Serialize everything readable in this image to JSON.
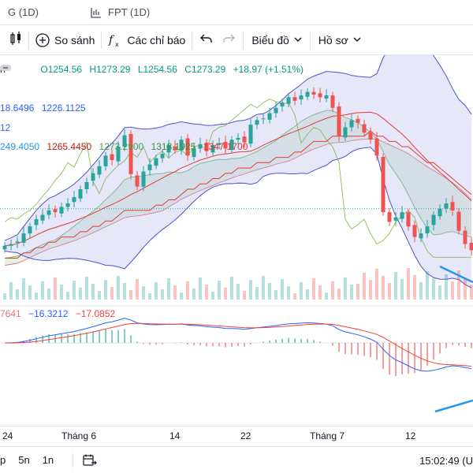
{
  "tabs": [
    {
      "label": "G (1D)"
    },
    {
      "label": "FPT (1D)"
    }
  ],
  "toolbar": {
    "compare_label": "So sánh",
    "indicators_label": "Các chỉ báo",
    "chart_type_label": "Biểu đồ",
    "profile_label": "Hồ sơ"
  },
  "ohlc": {
    "prefix": "h",
    "open": "O1254.56",
    "high": "H1273.29",
    "low": "L1254.56",
    "close": "C1273.29",
    "change": "+18.97 (+1.51%)"
  },
  "indicator_lines": {
    "line1": [
      "18.6496",
      "1226.1125"
    ],
    "line2": [
      "12"
    ],
    "line3": [
      "249.4050",
      "1265.4450",
      "1273.2900",
      "1318.1925",
      "1347.1700"
    ]
  },
  "macd": [
    "7641",
    "−16.3212",
    "−17.0852"
  ],
  "xaxis_labels": [
    "24",
    "Tháng 6",
    "14",
    "22",
    "Tháng 7",
    "12"
  ],
  "bottom": {
    "ranges": [
      "p",
      "5n",
      "1n"
    ],
    "clock": "15:02:49 (U"
  },
  "colors": {
    "up": "#26a69a",
    "down": "#ef5350",
    "bb_fill": "#b7b9ee",
    "bb_line": "#4c52d1",
    "cloud_green": "#c8e6c9",
    "ma_red": "#e53935",
    "macd_blue": "#2962ff",
    "signal_red": "#f44336"
  },
  "chart_data": {
    "type": "line",
    "series": [
      {
        "values": [
          1148,
          1150,
          1153,
          1162,
          1170,
          1178,
          1183,
          1188,
          1186,
          1192,
          1196,
          1203,
          1212,
          1220,
          1230,
          1238,
          1250,
          1245,
          1260,
          1273,
          1229,
          1215,
          1232,
          1240,
          1247,
          1252,
          1262,
          1256,
          1268,
          1250,
          1258,
          1263,
          1255,
          1262,
          1264,
          1258,
          1268,
          1270,
          1265,
          1285,
          1290,
          1292,
          1298,
          1304,
          1310,
          1316,
          1312,
          1318,
          1322,
          1319,
          1316,
          1318,
          1304,
          1272,
          1282,
          1290,
          1287,
          1276,
          1268,
          1250,
          1186,
          1175,
          1180,
          1186,
          1170,
          1158,
          1162,
          1170,
          1183,
          1190,
          1196,
          1188,
          1165,
          1150,
          1143
        ]
      }
    ]
  }
}
